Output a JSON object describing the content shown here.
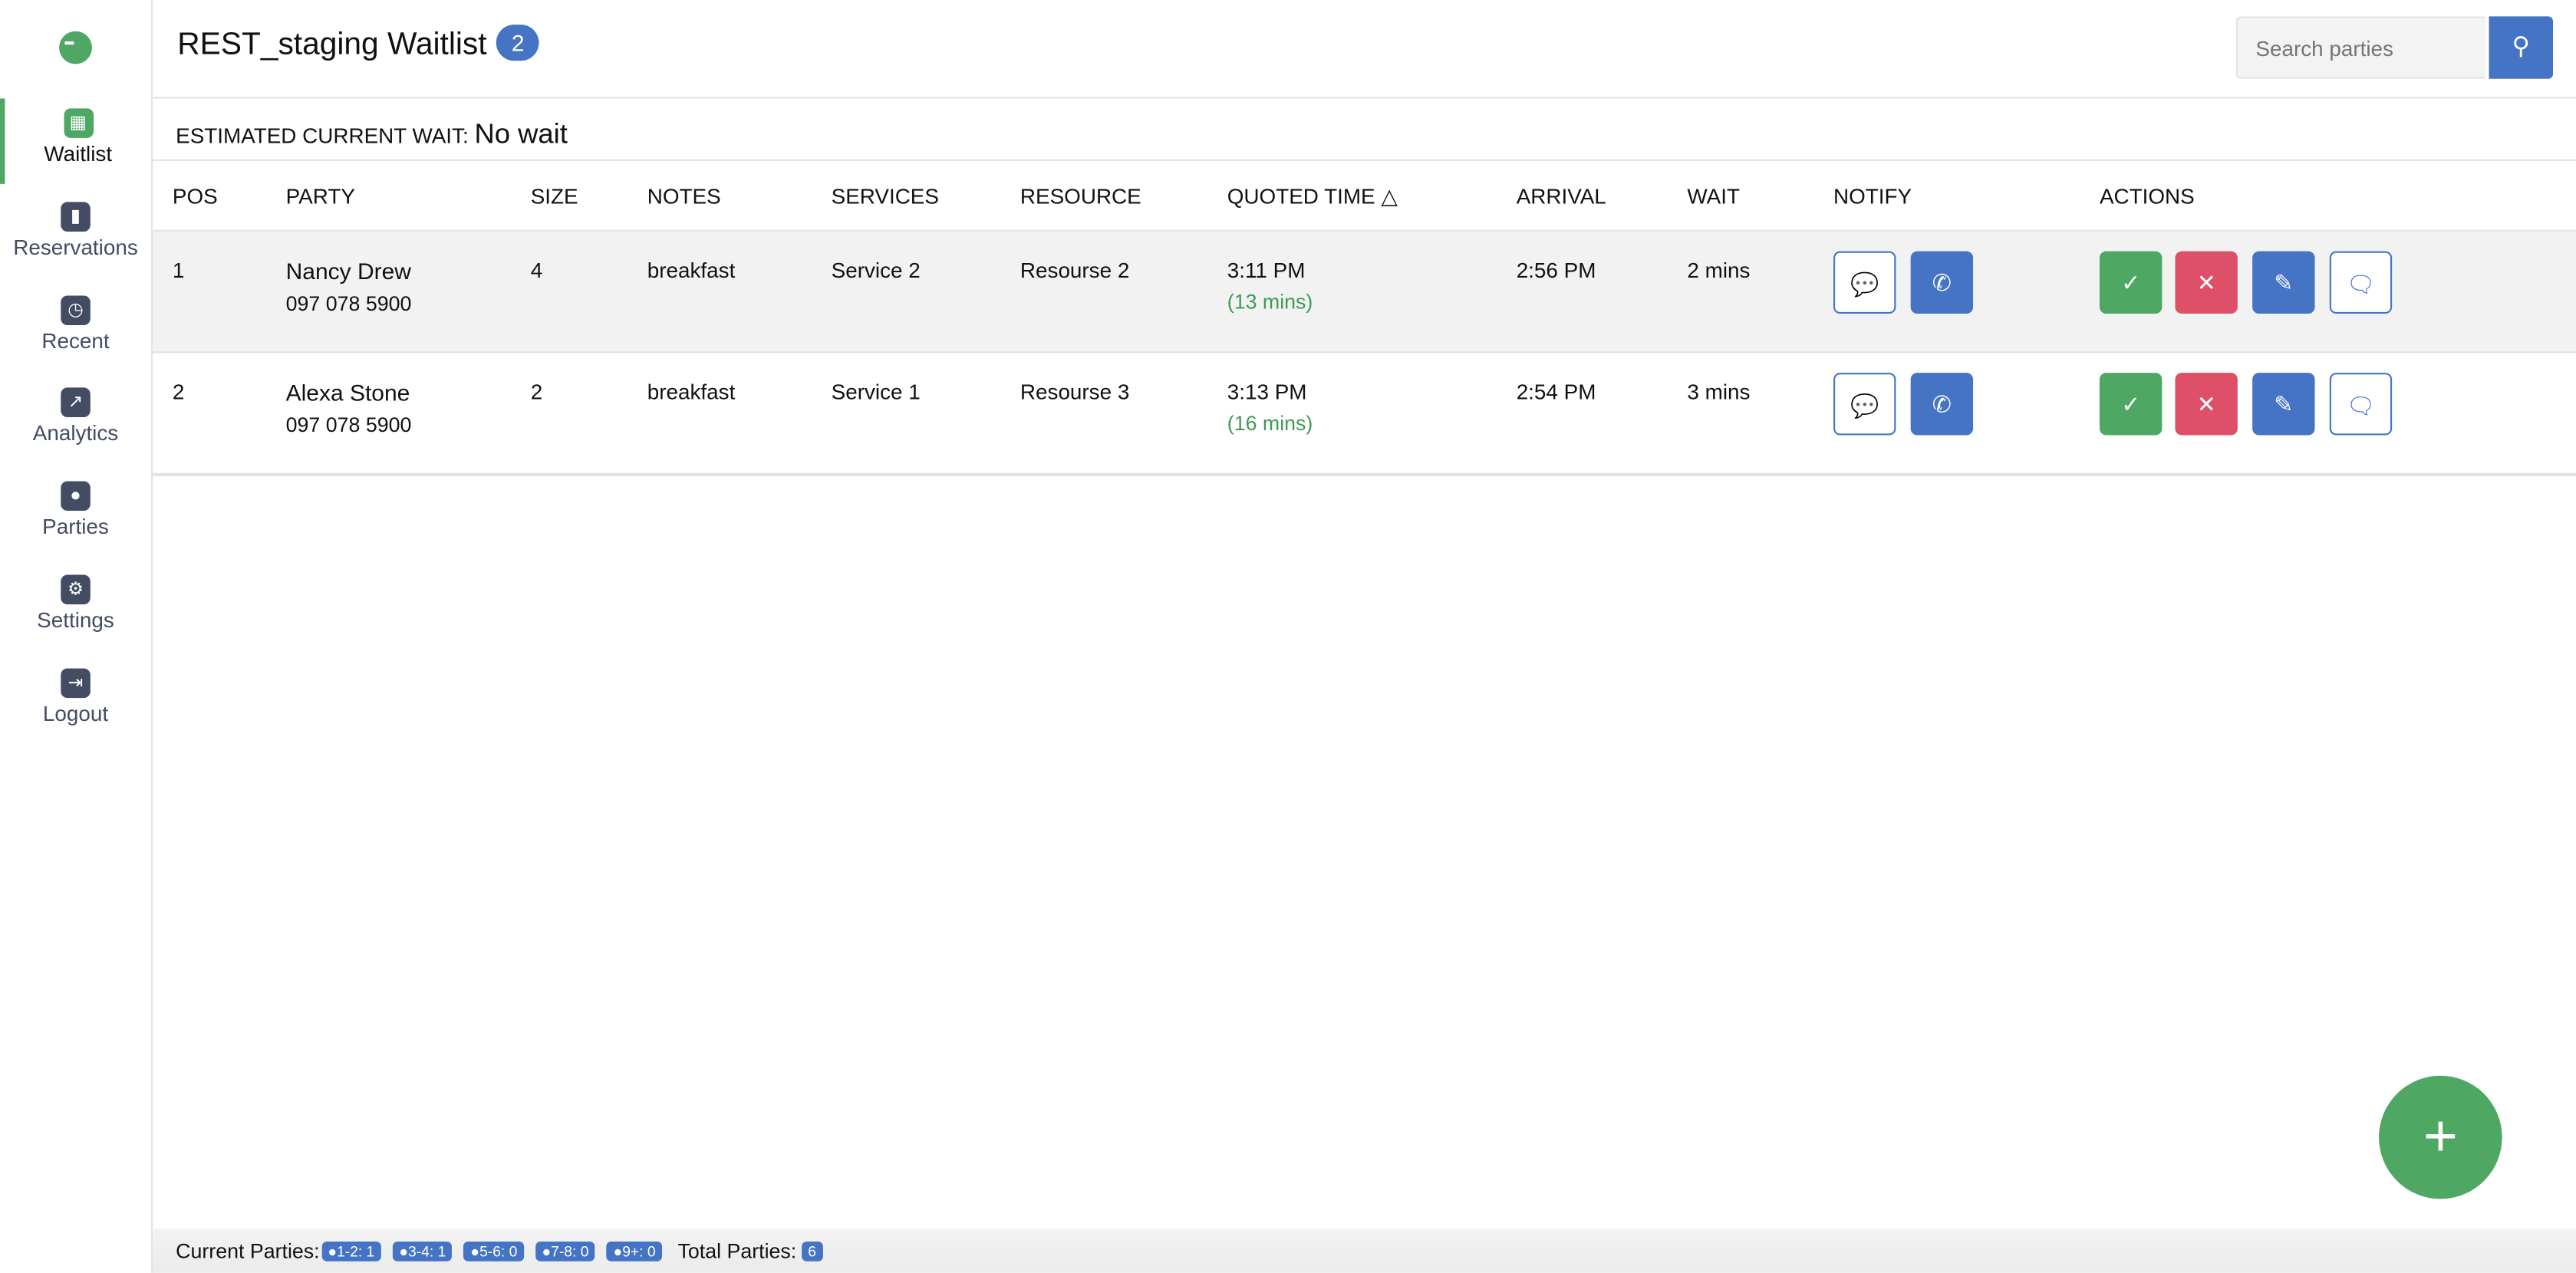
{
  "sidebar": {
    "items": [
      {
        "label": "Waitlist",
        "icon": "calendar-icon",
        "active": true
      },
      {
        "label": "Reservations",
        "icon": "bar-chart-icon"
      },
      {
        "label": "Recent",
        "icon": "clock-icon"
      },
      {
        "label": "Analytics",
        "icon": "line-chart-icon"
      },
      {
        "label": "Parties",
        "icon": "users-icon"
      },
      {
        "label": "Settings",
        "icon": "gear-icon"
      },
      {
        "label": "Logout",
        "icon": "logout-icon"
      }
    ]
  },
  "header": {
    "title": "REST_staging Waitlist",
    "count": "2",
    "search_placeholder": "Search parties"
  },
  "wait": {
    "label": "ESTIMATED CURRENT WAIT:",
    "value": "No wait"
  },
  "table": {
    "columns": [
      "POS",
      "PARTY",
      "SIZE",
      "NOTES",
      "SERVICES",
      "RESOURCE",
      "QUOTED TIME",
      "ARRIVAL",
      "WAIT",
      "NOTIFY",
      "ACTIONS"
    ],
    "sort_indicator": "△",
    "rows": [
      {
        "pos": "1",
        "name": "Nancy Drew",
        "phone": "097 078 5900",
        "size": "4",
        "notes": "breakfast",
        "service": "Service 2",
        "resource": "Resourse 2",
        "quoted": "3:11 PM",
        "quoted_rel": "(13 mins)",
        "arrival": "2:56 PM",
        "wait": "2 mins"
      },
      {
        "pos": "2",
        "name": "Alexa Stone",
        "phone": "097 078 5900",
        "size": "2",
        "notes": "breakfast",
        "service": "Service 1",
        "resource": "Resourse 3",
        "quoted": "3:13 PM",
        "quoted_rel": "(16 mins)",
        "arrival": "2:54 PM",
        "wait": "3 mins"
      }
    ]
  },
  "footer": {
    "current_label": "Current Parties:",
    "groups": [
      "1-2: 1",
      "3-4: 1",
      "5-6: 0",
      "7-8: 0",
      "9+: 0"
    ],
    "total_label": "Total Parties:",
    "total": "6"
  },
  "colors": {
    "primary": "#4574c4",
    "success": "#4fa764",
    "danger": "#de5068"
  }
}
